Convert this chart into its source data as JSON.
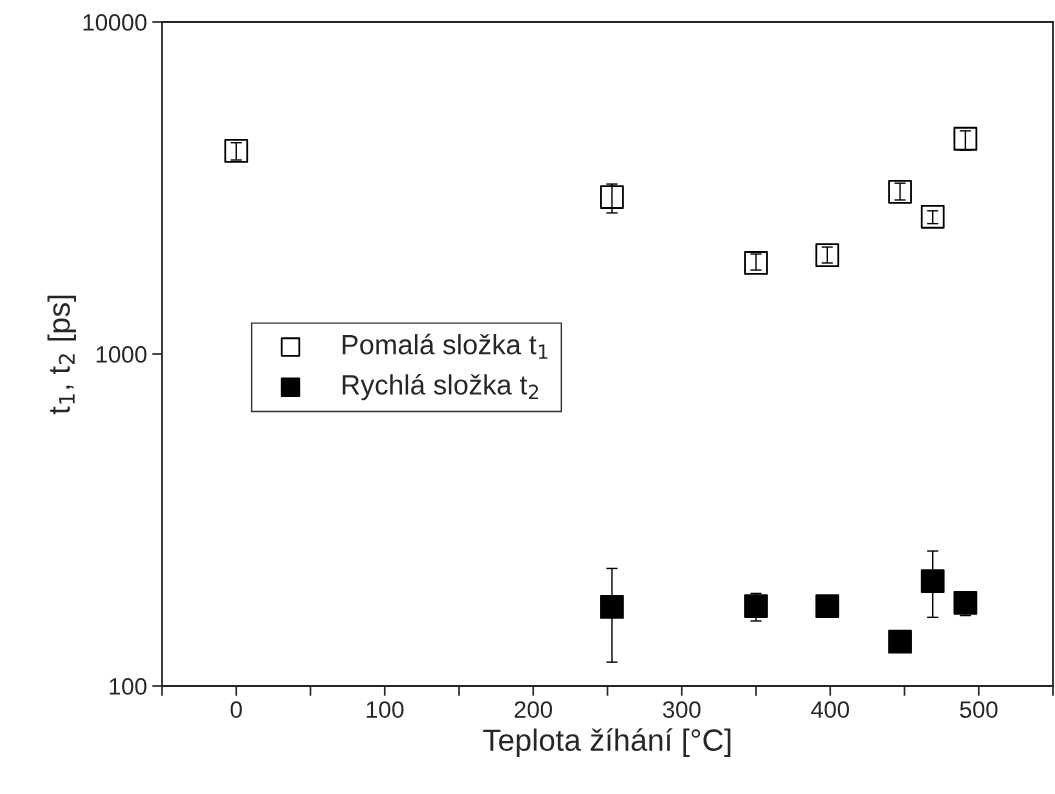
{
  "chart_data": {
    "type": "scatter",
    "xlabel": "Teplota žíhání [°C]",
    "ylabel": "t$_{1}$, t$_{2}$ [ps]",
    "log": "y",
    "marker": "square",
    "legend": "left",
    "grid": false,
    "xlim": [
      -50,
      550
    ],
    "xticks": [
      {
        "value": -50,
        "label": null
      },
      0,
      {
        "value": 50,
        "label": null
      },
      100,
      {
        "value": 150,
        "label": null
      },
      200,
      {
        "value": 250,
        "label": null
      },
      300,
      {
        "value": 350,
        "label": null
      },
      400,
      {
        "value": 450,
        "label": null
      },
      500,
      {
        "value": 550,
        "label": null
      }
    ],
    "ylim": [
      100,
      10000
    ],
    "yticks": [
      100,
      1000,
      10000
    ],
    "series": [
      {
        "name": "Pomalá složka t$_{1}$",
        "color": "#ffffff",
        "x": [
          0,
          253,
          350,
          398,
          447,
          469,
          491
        ],
        "values": [
          4090,
          2970,
          1880,
          1985,
          3080,
          2590,
          4450
        ],
        "errors": [
          [
            3840,
            4330
          ],
          [
            2660,
            3250
          ],
          [
            1790,
            2000
          ],
          [
            1880,
            2100
          ],
          [
            2910,
            3270
          ],
          [
            2470,
            2700
          ],
          [
            4110,
            4700
          ]
        ]
      },
      {
        "name": "Rychlá složka t$_{2}$",
        "color": "#000000",
        "x": [
          253,
          350,
          398,
          447,
          469,
          491
        ],
        "values": [
          173,
          174,
          174,
          136,
          207,
          178
        ],
        "errors": [
          [
            118,
            226
          ],
          [
            157,
            190
          ],
          [
            174,
            185
          ],
          null,
          [
            161,
            255
          ],
          [
            163,
            192
          ]
        ]
      }
    ]
  }
}
